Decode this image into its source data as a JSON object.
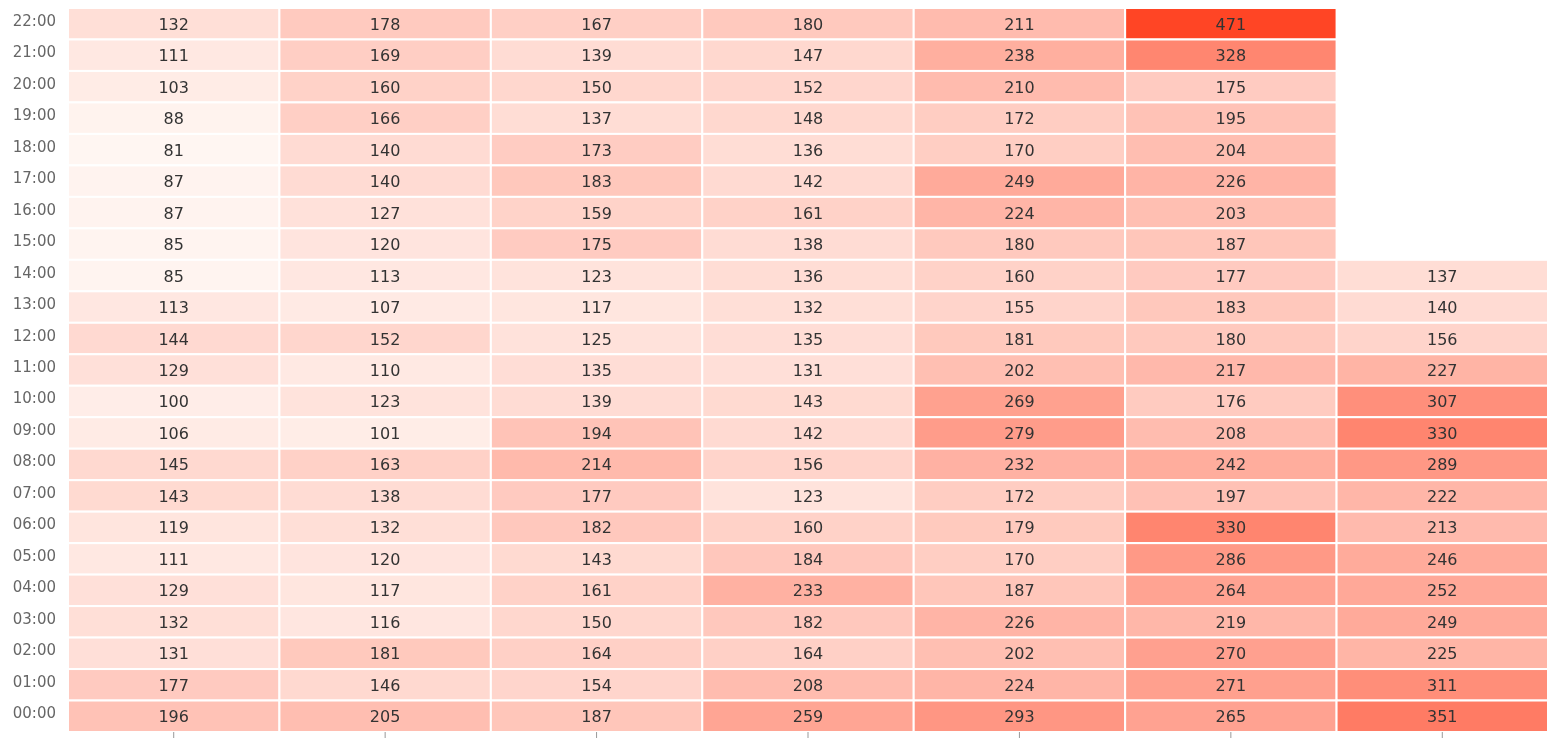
{
  "chart_data": {
    "type": "heatmap",
    "categories": [
      null,
      null,
      null,
      null,
      null,
      null,
      null
    ],
    "y_categories": [
      "22:00",
      "21:00",
      "20:00",
      "19:00",
      "18:00",
      "17:00",
      "16:00",
      "15:00",
      "14:00",
      "13:00",
      "12:00",
      "11:00",
      "10:00",
      "09:00",
      "08:00",
      "07:00",
      "06:00",
      "05:00",
      "04:00",
      "03:00",
      "02:00",
      "01:00",
      "00:00"
    ],
    "cells": [
      [
        132,
        178,
        167,
        180,
        211,
        471,
        null
      ],
      [
        111,
        169,
        139,
        147,
        238,
        328,
        null
      ],
      [
        103,
        160,
        150,
        152,
        210,
        175,
        null
      ],
      [
        88,
        166,
        137,
        148,
        172,
        195,
        null
      ],
      [
        81,
        140,
        173,
        136,
        170,
        204,
        null
      ],
      [
        87,
        140,
        183,
        142,
        249,
        226,
        null
      ],
      [
        87,
        127,
        159,
        161,
        224,
        203,
        null
      ],
      [
        85,
        120,
        175,
        138,
        180,
        187,
        null
      ],
      [
        85,
        113,
        123,
        136,
        160,
        177,
        137
      ],
      [
        113,
        107,
        117,
        132,
        155,
        183,
        140
      ],
      [
        144,
        152,
        125,
        135,
        181,
        180,
        156
      ],
      [
        129,
        110,
        135,
        131,
        202,
        217,
        227
      ],
      [
        100,
        123,
        139,
        143,
        269,
        176,
        307
      ],
      [
        106,
        101,
        194,
        142,
        279,
        208,
        330
      ],
      [
        145,
        163,
        214,
        156,
        232,
        242,
        289
      ],
      [
        143,
        138,
        177,
        123,
        172,
        197,
        222
      ],
      [
        119,
        132,
        182,
        160,
        179,
        330,
        213
      ],
      [
        111,
        120,
        143,
        184,
        170,
        286,
        246
      ],
      [
        129,
        117,
        161,
        233,
        187,
        264,
        252
      ],
      [
        132,
        116,
        150,
        182,
        226,
        219,
        249
      ],
      [
        131,
        181,
        164,
        164,
        202,
        270,
        225
      ],
      [
        177,
        146,
        154,
        208,
        224,
        271,
        311
      ],
      [
        196,
        205,
        187,
        259,
        293,
        265,
        351
      ]
    ],
    "data_labels": true
  }
}
